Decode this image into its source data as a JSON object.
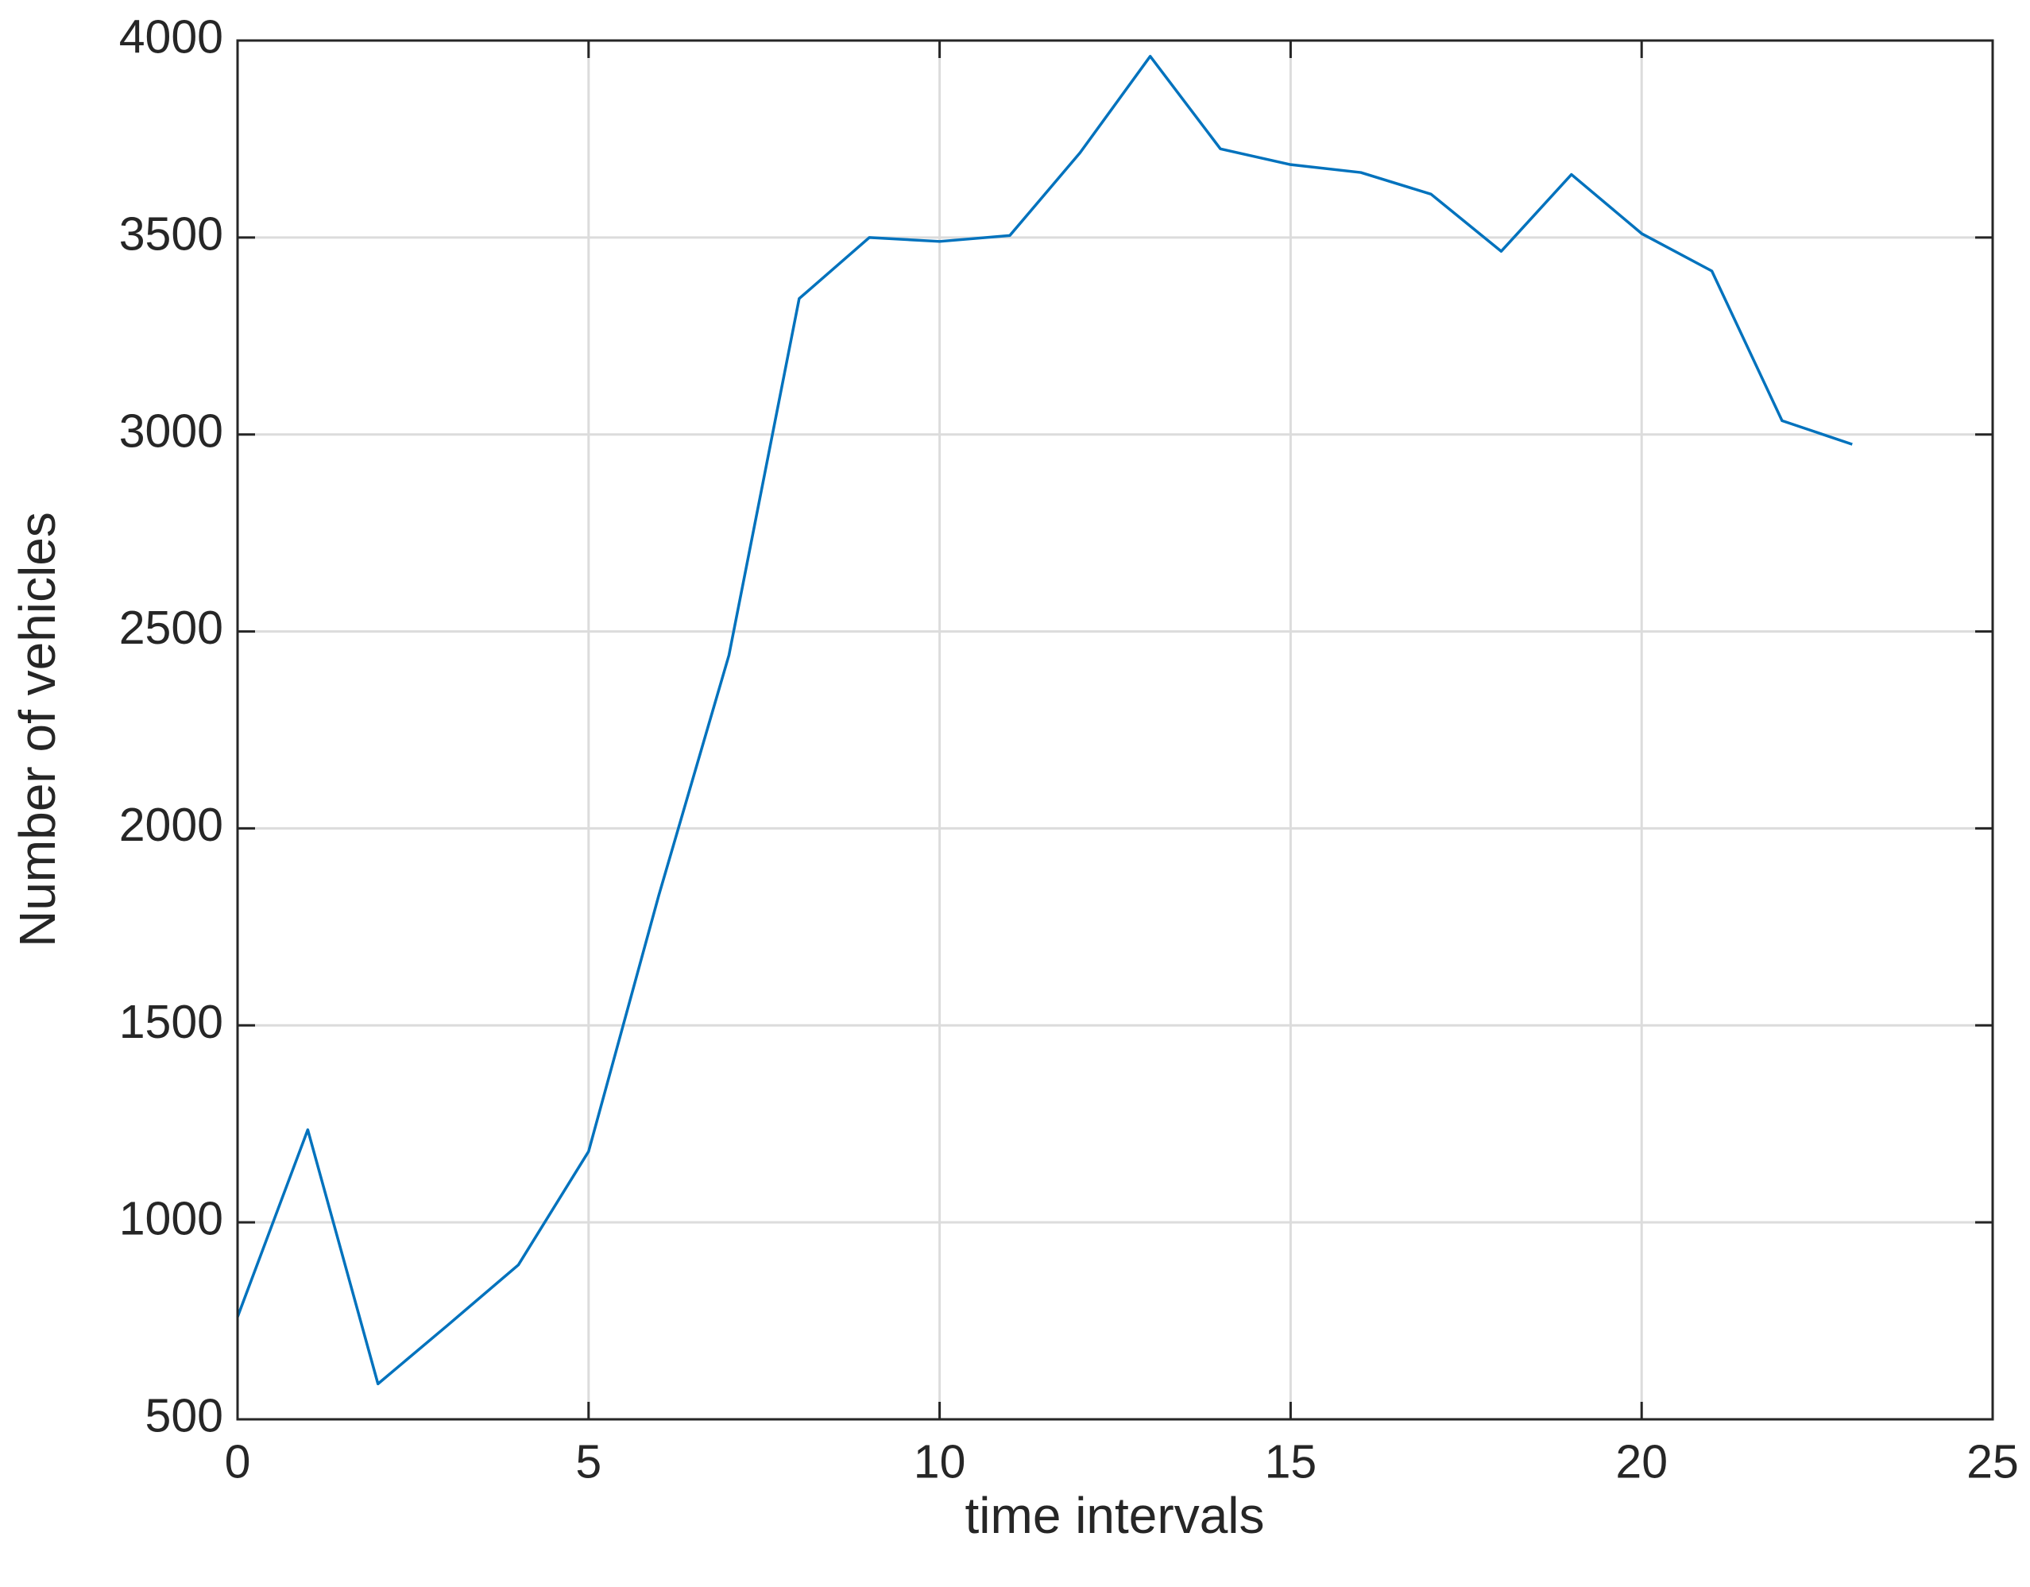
{
  "chart_data": {
    "type": "line",
    "xlabel": "time intervals",
    "ylabel": "Number of vehicles",
    "x": [
      0,
      1,
      2,
      3,
      4,
      5,
      6,
      7,
      8,
      9,
      10,
      11,
      12,
      13,
      14,
      15,
      16,
      17,
      18,
      19,
      20,
      21,
      22,
      23
    ],
    "values": [
      760,
      1235,
      590,
      740,
      892,
      1180,
      1830,
      2440,
      3345,
      3500,
      3490,
      3505,
      3715,
      3960,
      3725,
      3685,
      3665,
      3610,
      3465,
      3660,
      3510,
      3415,
      3035,
      2975
    ],
    "color": "#0072bd",
    "xlim": [
      0,
      25
    ],
    "xticks": [
      0,
      5,
      10,
      15,
      20,
      25
    ],
    "ylim": [
      500,
      4000
    ],
    "yticks": [
      500,
      1000,
      1500,
      2000,
      2500,
      3000,
      3500,
      4000
    ],
    "grid": true
  }
}
